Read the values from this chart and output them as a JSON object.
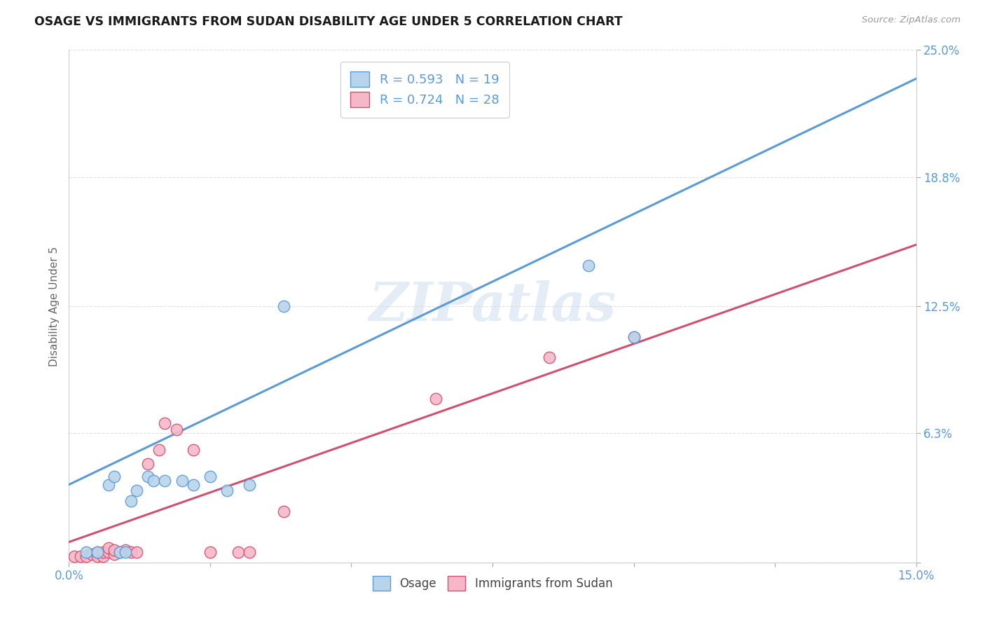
{
  "title": "OSAGE VS IMMIGRANTS FROM SUDAN DISABILITY AGE UNDER 5 CORRELATION CHART",
  "source": "Source: ZipAtlas.com",
  "ylabel": "Disability Age Under 5",
  "xlim": [
    0.0,
    0.15
  ],
  "ylim": [
    0.0,
    0.25
  ],
  "blue_R": 0.593,
  "blue_N": 19,
  "pink_R": 0.724,
  "pink_N": 28,
  "blue_color": "#b8d4ea",
  "pink_color": "#f5b8c8",
  "blue_line_color": "#5b9bd5",
  "pink_line_color": "#d05070",
  "legend_label_blue": "Osage",
  "legend_label_pink": "Immigrants from Sudan",
  "blue_scatter_x": [
    0.003,
    0.005,
    0.007,
    0.008,
    0.009,
    0.01,
    0.011,
    0.012,
    0.014,
    0.015,
    0.017,
    0.02,
    0.022,
    0.025,
    0.028,
    0.032,
    0.038,
    0.092,
    0.1
  ],
  "blue_scatter_y": [
    0.005,
    0.005,
    0.038,
    0.042,
    0.005,
    0.005,
    0.03,
    0.035,
    0.042,
    0.04,
    0.04,
    0.04,
    0.038,
    0.042,
    0.035,
    0.038,
    0.125,
    0.145,
    0.11
  ],
  "pink_scatter_x": [
    0.001,
    0.002,
    0.003,
    0.004,
    0.005,
    0.005,
    0.006,
    0.006,
    0.007,
    0.007,
    0.008,
    0.008,
    0.009,
    0.01,
    0.011,
    0.012,
    0.014,
    0.016,
    0.017,
    0.019,
    0.022,
    0.025,
    0.03,
    0.032,
    0.038,
    0.065,
    0.085,
    0.1
  ],
  "pink_scatter_y": [
    0.003,
    0.003,
    0.003,
    0.004,
    0.003,
    0.005,
    0.003,
    0.005,
    0.005,
    0.007,
    0.004,
    0.006,
    0.005,
    0.006,
    0.005,
    0.005,
    0.048,
    0.055,
    0.068,
    0.065,
    0.055,
    0.005,
    0.005,
    0.005,
    0.025,
    0.08,
    0.1,
    0.11
  ],
  "blue_line_x0": 0.0,
  "blue_line_y0": 0.038,
  "blue_line_x1": 0.15,
  "blue_line_y1": 0.236,
  "pink_line_x0": 0.0,
  "pink_line_y0": 0.01,
  "pink_line_x1": 0.15,
  "pink_line_y1": 0.155,
  "watermark": "ZIPatlas",
  "background_color": "#ffffff",
  "grid_color": "#e0e0e0",
  "xtick_positions": [
    0.0,
    0.025,
    0.05,
    0.075,
    0.1,
    0.125,
    0.15
  ],
  "xtick_labels": [
    "0.0%",
    "",
    "",
    "",
    "",
    "",
    "15.0%"
  ],
  "ytick_positions": [
    0.0,
    0.063,
    0.125,
    0.188,
    0.25
  ],
  "ytick_labels": [
    "",
    "6.3%",
    "12.5%",
    "18.8%",
    "25.0%"
  ]
}
